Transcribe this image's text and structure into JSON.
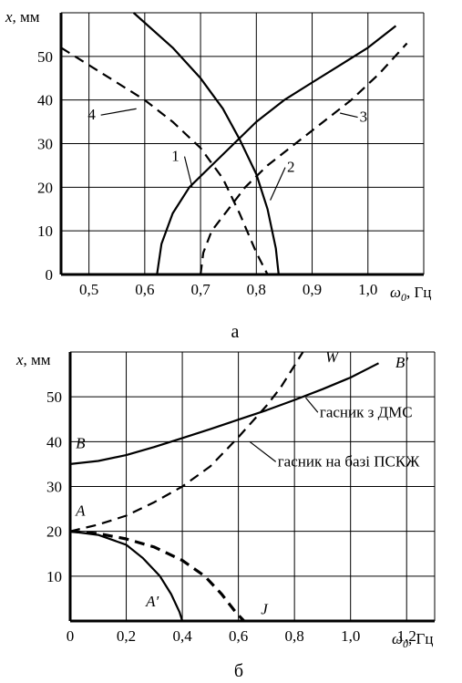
{
  "chart_data": [
    {
      "type": "line",
      "panel_label": "а",
      "ylabel_var": "x",
      "ylabel_unit": ", мм",
      "xlabel_var": "ω",
      "xlabel_sub": "0",
      "xlabel_unit": ", Гц",
      "xlim": [
        0.45,
        1.1
      ],
      "ylim": [
        0,
        60
      ],
      "x_ticks": [
        0.5,
        0.6,
        0.7,
        0.8,
        0.9,
        1.0
      ],
      "x_tick_labels": [
        "0,5",
        "0,6",
        "0,7",
        "0,8",
        "0,9",
        "1,0"
      ],
      "y_ticks": [
        0,
        10,
        20,
        30,
        40,
        50
      ],
      "y_tick_labels": [
        "0",
        "10",
        "20",
        "30",
        "40",
        "50"
      ],
      "grid": true,
      "series": [
        {
          "name": "1",
          "style": "solid",
          "x": [
            0.622,
            0.63,
            0.65,
            0.68,
            0.72,
            0.76,
            0.8,
            0.85,
            0.9,
            0.95,
            1.0,
            1.05
          ],
          "y": [
            0,
            7,
            14,
            20,
            25,
            30,
            35,
            40,
            44,
            48,
            52,
            57
          ]
        },
        {
          "name": "2",
          "style": "solid",
          "x": [
            0.58,
            0.65,
            0.7,
            0.74,
            0.77,
            0.8,
            0.82,
            0.835,
            0.84
          ],
          "y": [
            60,
            52,
            45,
            38,
            31,
            23,
            15,
            6,
            0
          ]
        },
        {
          "name": "3",
          "style": "dashed",
          "x": [
            0.7,
            0.705,
            0.72,
            0.75,
            0.78,
            0.82,
            0.87,
            0.92,
            0.97,
            1.02,
            1.07
          ],
          "y": [
            0,
            5,
            10,
            15,
            20,
            25,
            30,
            35,
            40,
            46,
            53
          ]
        },
        {
          "name": "4",
          "style": "dashed",
          "x": [
            0.45,
            0.5,
            0.55,
            0.6,
            0.65,
            0.7,
            0.74,
            0.77,
            0.8,
            0.82
          ],
          "y": [
            52,
            48,
            44,
            40,
            35,
            29,
            22,
            14,
            5,
            0
          ]
        }
      ],
      "annotations": [
        {
          "text": "1",
          "x": 0.655,
          "y": 26,
          "ax": 0.685,
          "ay": 20
        },
        {
          "text": "2",
          "x": 0.855,
          "y": 23.5,
          "ax": 0.825,
          "ay": 17
        },
        {
          "text": "3",
          "x": 0.985,
          "y": 35,
          "ax": 0.95,
          "ay": 37
        },
        {
          "text": "4",
          "x": 0.505,
          "y": 35.5,
          "ax": 0.585,
          "ay": 38
        }
      ]
    },
    {
      "type": "line",
      "panel_label": "б",
      "ylabel_var": "x",
      "ylabel_unit": ", мм",
      "xlabel_var": "ω",
      "xlabel_sub": "0",
      "xlabel_unit": ", Гц",
      "xlim": [
        0,
        1.3
      ],
      "ylim": [
        0,
        60
      ],
      "x_ticks": [
        0,
        0.2,
        0.4,
        0.6,
        0.8,
        1.0,
        1.2
      ],
      "x_tick_labels": [
        "0",
        "0,2",
        "0,4",
        "0,6",
        "0,8",
        "1,0",
        "1,2"
      ],
      "y_ticks": [
        10,
        20,
        30,
        40,
        50
      ],
      "y_tick_labels": [
        "10",
        "20",
        "30",
        "40",
        "50"
      ],
      "grid": true,
      "series": [
        {
          "name": "гасник з ДМС",
          "style": "solid",
          "x": [
            0,
            0.1,
            0.2,
            0.3,
            0.4,
            0.5,
            0.6,
            0.7,
            0.8,
            0.9,
            1.0,
            1.1
          ],
          "y": [
            35,
            35.7,
            37,
            38.8,
            40.8,
            42.8,
            44.9,
            47,
            49.3,
            51.7,
            54.3,
            57.5
          ]
        },
        {
          "name": "гасник на базі ПСКЖ",
          "style": "dashed",
          "x": [
            0,
            0.1,
            0.2,
            0.3,
            0.4,
            0.5,
            0.6,
            0.7,
            0.75,
            0.8,
            0.83
          ],
          "y": [
            20,
            21.5,
            23.5,
            26.5,
            30,
            34.5,
            41,
            48,
            52,
            57,
            60
          ]
        },
        {
          "name": "A-A′",
          "style": "solid",
          "x": [
            0,
            0.1,
            0.2,
            0.26,
            0.32,
            0.36,
            0.39,
            0.4
          ],
          "y": [
            20,
            19.2,
            17,
            14,
            10,
            6,
            2,
            0
          ]
        },
        {
          "name": "A-J",
          "style": "bold-dashed",
          "x": [
            0,
            0.1,
            0.2,
            0.3,
            0.4,
            0.48,
            0.54,
            0.59,
            0.62
          ],
          "y": [
            20,
            19.5,
            18.3,
            16.5,
            13.5,
            10,
            6,
            2,
            0
          ]
        }
      ],
      "point_labels": [
        {
          "text": "A",
          "x": 0.02,
          "y": 23.5
        },
        {
          "text": "B",
          "x": 0.02,
          "y": 38.5
        },
        {
          "text": "A′",
          "x": 0.27,
          "y": 3.3
        },
        {
          "text": "J",
          "x": 0.68,
          "y": 1.5
        },
        {
          "text": "W",
          "x": 0.91,
          "y": 57.8
        },
        {
          "text": "B′",
          "x": 1.16,
          "y": 56.5
        }
      ],
      "annotations": [
        {
          "text": "гасник з ДМС",
          "x": 0.89,
          "y": 45.5,
          "ax": 0.84,
          "ay": 49.8
        },
        {
          "text": "гасник на базі ПСКЖ",
          "x": 0.74,
          "y": 34.5,
          "ax": 0.64,
          "ay": 40
        }
      ]
    }
  ]
}
